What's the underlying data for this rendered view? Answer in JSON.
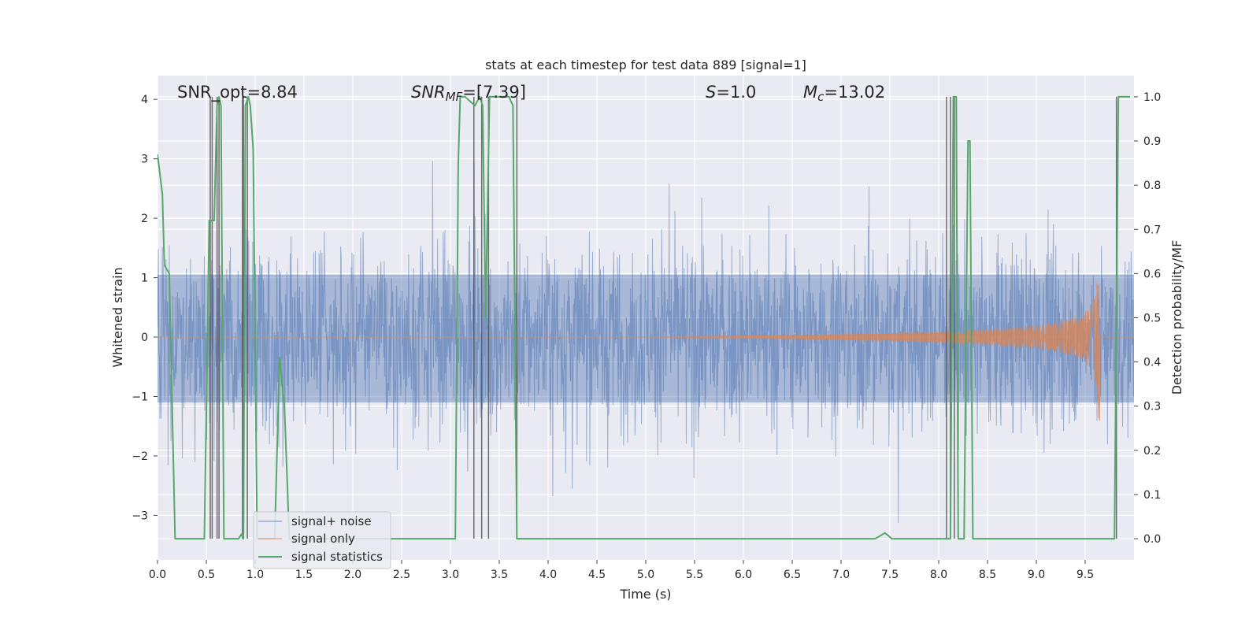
{
  "chart_data": {
    "type": "line",
    "title": "stats at each timestep for test data 889 [signal=1]",
    "xlabel": "Time (s)",
    "ylabel_left": "Whitened strain",
    "ylabel_right": "Detection probability/MF",
    "xlim": [
      0.0,
      10.0
    ],
    "ylim_left": [
      -3.75,
      4.4
    ],
    "ylim_right": [
      -0.048,
      1.048
    ],
    "xticks": [
      "0.0",
      "0.5",
      "1.0",
      "1.5",
      "2.0",
      "2.5",
      "3.0",
      "3.5",
      "4.0",
      "4.5",
      "5.0",
      "5.5",
      "6.0",
      "6.5",
      "7.0",
      "7.5",
      "8.0",
      "8.5",
      "9.0",
      "9.5"
    ],
    "xtick_values": [
      0.0,
      0.5,
      1.0,
      1.5,
      2.0,
      2.5,
      3.0,
      3.5,
      4.0,
      4.5,
      5.0,
      5.5,
      6.0,
      6.5,
      7.0,
      7.5,
      8.0,
      8.5,
      9.0,
      9.5
    ],
    "yticks_left": [
      "−3",
      "−2",
      "−1",
      "0",
      "1",
      "2",
      "3",
      "4"
    ],
    "ytick_values_left": [
      -3,
      -2,
      -1,
      0,
      1,
      2,
      3,
      4
    ],
    "yticks_right": [
      "0.0",
      "0.1",
      "0.2",
      "0.3",
      "0.4",
      "0.5",
      "0.6",
      "0.7",
      "0.8",
      "0.9",
      "1.0"
    ],
    "ytick_values_right": [
      0.0,
      0.1,
      0.2,
      0.3,
      0.4,
      0.5,
      0.6,
      0.7,
      0.8,
      0.9,
      1.0
    ],
    "grid": true,
    "legend_position": "lower-left",
    "annotations": {
      "snr_opt": "SNR_opt=8.84",
      "snr_mf_prefix": "SNR",
      "snr_mf_sub": "MF",
      "snr_mf_suffix": "=[7.39]",
      "s_var": "S",
      "s_value": "=1.0",
      "mc_var": "M",
      "mc_sub": "c",
      "mc_value": "=13.02"
    },
    "series": [
      {
        "name": "signal+ noise",
        "color": "#4c72b0",
        "axis": "left",
        "description_visible": "dense noise band",
        "envelope_core": [
          -1.1,
          1.05
        ],
        "envelope_spikes": [
          -3.4,
          3.7
        ]
      },
      {
        "name": "signal only",
        "color": "#dd8452",
        "axis": "left",
        "chirp_start": 5.0,
        "chirp_merger": 9.65,
        "peak_amplitude": 1.55
      },
      {
        "name": "signal statistics",
        "color": "#55a868",
        "axis": "right",
        "x": [
          0.0,
          0.05,
          0.07,
          0.12,
          0.18,
          0.43,
          0.48,
          0.53,
          0.58,
          0.61,
          0.63,
          0.65,
          0.68,
          0.73,
          0.83,
          0.86,
          0.88,
          0.9,
          0.93,
          0.95,
          0.98,
          1.02,
          1.07,
          1.13,
          1.2,
          1.25,
          1.3,
          1.35,
          1.45,
          3.05,
          3.08,
          3.1,
          3.15,
          3.2,
          3.25,
          3.3,
          3.33,
          3.36,
          3.4,
          3.45,
          3.5,
          3.55,
          3.6,
          3.64,
          3.68,
          3.7,
          3.75,
          3.8,
          7.35,
          7.45,
          7.52,
          7.6,
          8.08,
          8.12,
          8.15,
          8.18,
          8.2,
          8.22,
          8.24,
          8.26,
          8.3,
          8.32,
          8.35,
          8.38,
          8.4,
          8.45,
          8.5,
          8.55,
          9.8,
          9.84,
          9.88,
          9.92,
          9.96
        ],
        "y": [
          0.87,
          0.78,
          0.62,
          0.6,
          0.0,
          0.0,
          0.0,
          0.72,
          0.72,
          0.98,
          1.0,
          0.98,
          0.0,
          0.0,
          0.0,
          0.01,
          0.0,
          0.98,
          1.0,
          0.98,
          0.88,
          0.0,
          0.0,
          0.0,
          0.0,
          0.41,
          0.3,
          0.0,
          0.0,
          0.0,
          0.85,
          1.0,
          1.0,
          0.99,
          0.98,
          1.0,
          0.98,
          0.5,
          1.0,
          1.0,
          1.0,
          1.0,
          1.0,
          0.98,
          0.0,
          0.0,
          0.0,
          0.0,
          0.0,
          0.013,
          0.0,
          0.0,
          0.0,
          0.0,
          1.0,
          1.0,
          0.0,
          0.0,
          0.0,
          0.0,
          0.9,
          0.9,
          0.0,
          0.0,
          0.0,
          0.0,
          0.0,
          0.0,
          0.0,
          1.0,
          1.0,
          1.0,
          1.0
        ]
      }
    ],
    "vertical_markers": {
      "color": "#555555",
      "x": [
        0.54,
        0.56,
        0.61,
        0.63,
        0.87,
        0.88,
        0.92,
        3.24,
        3.32,
        3.39,
        3.68,
        8.08,
        8.12,
        8.16,
        9.82
      ]
    }
  }
}
